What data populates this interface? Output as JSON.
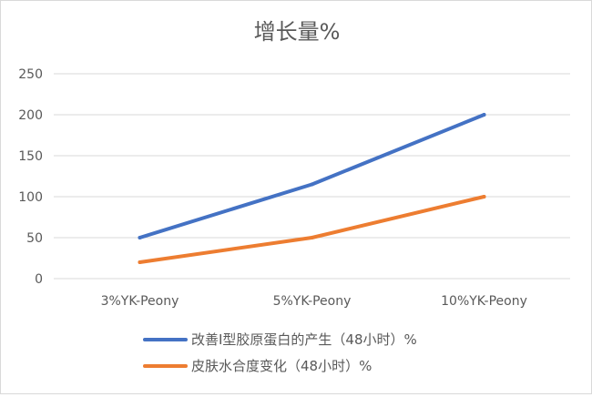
{
  "chart_data": {
    "type": "line",
    "title": "增长量%",
    "xlabel": "",
    "ylabel": "",
    "categories": [
      "3%YK-Peony",
      "5%YK-Peony",
      "10%YK-Peony"
    ],
    "y_ticks": [
      "0",
      "50",
      "100",
      "150",
      "200",
      "250"
    ],
    "ylim": [
      0,
      250
    ],
    "grid": true,
    "legend_position": "bottom",
    "series": [
      {
        "name": "改善I型胶原蛋白的产生（48小时）%",
        "color": "#4472c4",
        "values": [
          50,
          115,
          200
        ]
      },
      {
        "name": "皮肤水合度变化（48小时）%",
        "color": "#ed7d31",
        "values": [
          20,
          50,
          100
        ]
      }
    ]
  }
}
